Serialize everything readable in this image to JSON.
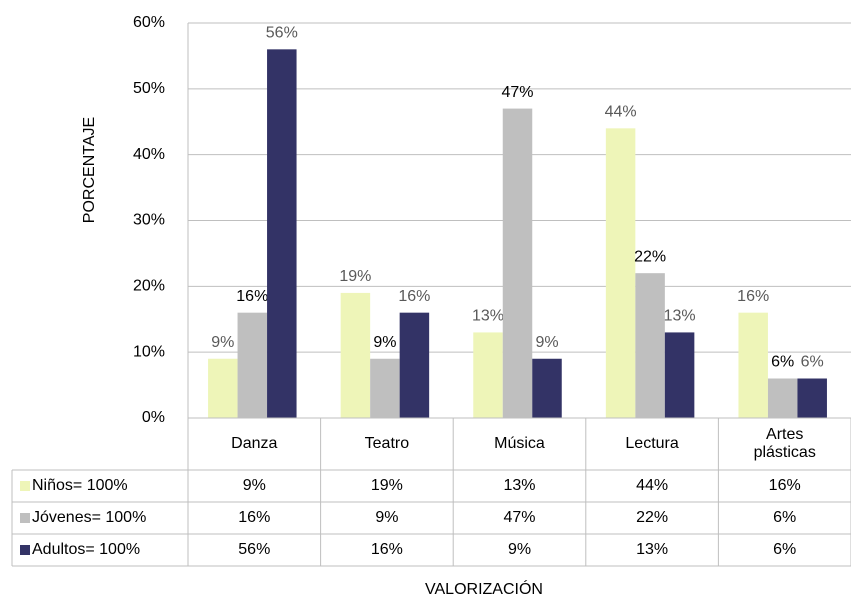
{
  "chart_data": {
    "type": "bar",
    "y_axis_label": "PORCENTAJE",
    "x_axis_label": "VALORIZACIÓN",
    "categories": [
      "Danza",
      "Teatro",
      "Música",
      "Lectura",
      "Artes plásticas"
    ],
    "series": [
      {
        "name": "Niños= 100%",
        "color": "#eef5b8",
        "label_color": "#595959",
        "values": [
          9,
          19,
          13,
          44,
          16
        ],
        "value_labels": [
          "9%",
          "19%",
          "13%",
          "44%",
          "16%"
        ]
      },
      {
        "name": "Jóvenes= 100%",
        "color": "#bfbfbf",
        "label_color": "#000000",
        "values": [
          16,
          9,
          47,
          22,
          6
        ],
        "value_labels": [
          "16%",
          "9%",
          "47%",
          "22%",
          "6%"
        ]
      },
      {
        "name": "Adultos= 100%",
        "color": "#333366",
        "label_color": "#595959",
        "values": [
          56,
          16,
          9,
          13,
          6
        ],
        "value_labels": [
          "56%",
          "16%",
          "9%",
          "13%",
          "6%"
        ]
      }
    ],
    "ylim": [
      0,
      60
    ],
    "yticks": [
      {
        "value": 0,
        "label": "0%"
      },
      {
        "value": 10,
        "label": "10%"
      },
      {
        "value": 20,
        "label": "20%"
      },
      {
        "value": 30,
        "label": "30%"
      },
      {
        "value": 40,
        "label": "40%"
      },
      {
        "value": 50,
        "label": "50%"
      },
      {
        "value": 60,
        "label": "60%"
      }
    ],
    "grid": true,
    "data_table": true
  }
}
